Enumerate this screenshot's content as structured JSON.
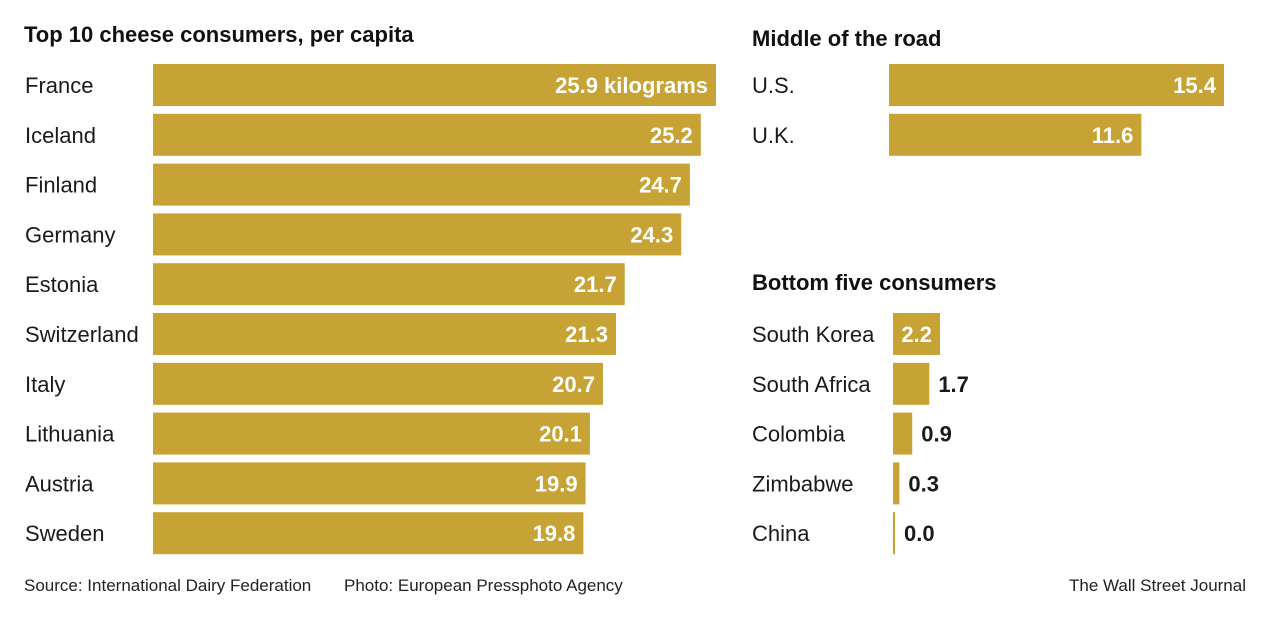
{
  "colors": {
    "bar": "#c6a334",
    "text": "#1a1a1a",
    "label_inside": "#ffffff"
  },
  "chart_data": [
    {
      "type": "bar",
      "orientation": "horizontal",
      "title": "Top 10 cheese consumers, per capita",
      "categories": [
        "France",
        "Iceland",
        "Finland",
        "Germany",
        "Estonia",
        "Switzerland",
        "Italy",
        "Lithuania",
        "Austria",
        "Sweden"
      ],
      "values": [
        25.9,
        25.2,
        24.7,
        24.3,
        21.7,
        21.3,
        20.7,
        20.1,
        19.9,
        19.8
      ],
      "value_labels": [
        "25.9 kilograms",
        "25.2",
        "24.7",
        "24.3",
        "21.7",
        "21.3",
        "20.7",
        "20.1",
        "19.9",
        "19.8"
      ],
      "xlim": [
        0,
        25.9
      ]
    },
    {
      "type": "bar",
      "orientation": "horizontal",
      "title": "Middle of the road",
      "categories": [
        "U.S.",
        "U.K."
      ],
      "values": [
        15.4,
        11.6
      ],
      "value_labels": [
        "15.4",
        "11.6"
      ],
      "xlim": [
        0,
        15.4
      ]
    },
    {
      "type": "bar",
      "orientation": "horizontal",
      "title": "Bottom five consumers",
      "categories": [
        "South Korea",
        "South Africa",
        "Colombia",
        "Zimbabwe",
        "China"
      ],
      "values": [
        2.2,
        1.7,
        0.9,
        0.3,
        0.0
      ],
      "value_labels": [
        "2.2",
        "1.7",
        "0.9",
        "0.3",
        "0.0"
      ],
      "xlim": [
        0,
        2.2
      ]
    }
  ],
  "footer": {
    "source": "Source: International Dairy Federation",
    "photo": "Photo: European Pressphoto Agency",
    "publisher": "The Wall Street Journal"
  }
}
